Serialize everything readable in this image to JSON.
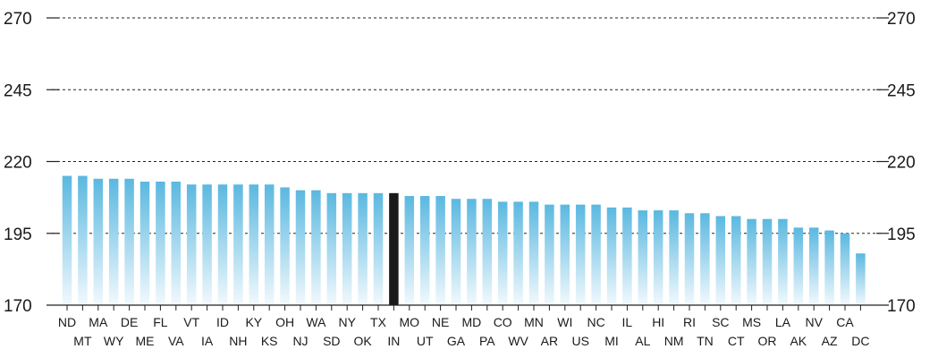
{
  "chart_data": {
    "type": "bar",
    "title": "",
    "xlabel": "",
    "ylabel": "",
    "ylim": [
      170,
      270
    ],
    "yticks": [
      170,
      195,
      220,
      245,
      270
    ],
    "grid": true,
    "colors": {
      "bar_top": "#5ab8e0",
      "bar_bottom": "#f2f9fd",
      "highlight": "#1a1a1a",
      "grid": "#222222",
      "text": "#1a1a1a"
    },
    "highlight_category": "IN",
    "categories": [
      "ND",
      "MT",
      "MA",
      "WY",
      "DE",
      "ME",
      "FL",
      "VA",
      "VT",
      "IA",
      "ID",
      "NH",
      "KY",
      "KS",
      "OH",
      "NJ",
      "WA",
      "SD",
      "NY",
      "OK",
      "TX",
      "IN",
      "MO",
      "UT",
      "NE",
      "GA",
      "MD",
      "PA",
      "CO",
      "WV",
      "MN",
      "AR",
      "WI",
      "US",
      "NC",
      "MI",
      "IL",
      "AL",
      "HI",
      "NM",
      "RI",
      "TN",
      "SC",
      "CT",
      "MS",
      "OR",
      "LA",
      "AK",
      "NV",
      "AZ",
      "CA",
      "DC"
    ],
    "values": [
      215,
      215,
      214,
      214,
      214,
      213,
      213,
      213,
      212,
      212,
      212,
      212,
      212,
      212,
      211,
      210,
      210,
      209,
      209,
      209,
      209,
      209,
      208,
      208,
      208,
      207,
      207,
      207,
      206,
      206,
      206,
      205,
      205,
      205,
      205,
      204,
      204,
      203,
      203,
      203,
      202,
      202,
      201,
      201,
      200,
      200,
      200,
      197,
      197,
      196,
      195,
      188
    ]
  }
}
